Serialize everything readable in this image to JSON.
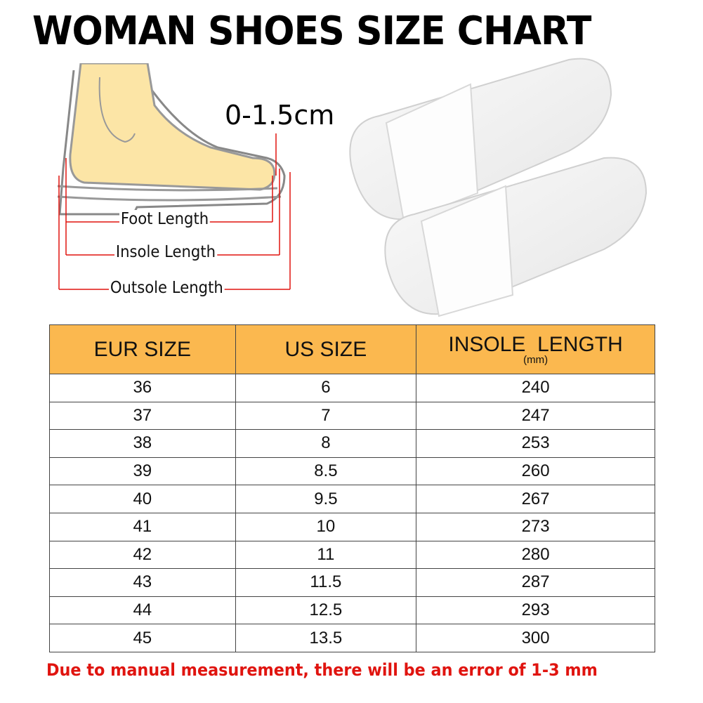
{
  "title": "WOMAN SHOES SIZE CHART",
  "diagram": {
    "gap_label": "0-1.5cm",
    "foot_length": "Foot Length",
    "insole_length": "Insole Length",
    "outsole_length": "Outsole Length",
    "arrow_color": "#e0140f",
    "foot_color": "#fce5a6"
  },
  "table": {
    "header_color": "#fbb84f",
    "headers": [
      "EUR SIZE",
      "US SIZE",
      "INSOLE  LENGTH"
    ],
    "header_unit": "(mm)",
    "rows": [
      [
        "36",
        "6",
        "240"
      ],
      [
        "37",
        "7",
        "247"
      ],
      [
        "38",
        "8",
        "253"
      ],
      [
        "39",
        "8.5",
        "260"
      ],
      [
        "40",
        "9.5",
        "267"
      ],
      [
        "41",
        "10",
        "273"
      ],
      [
        "42",
        "11",
        "280"
      ],
      [
        "43",
        "11.5",
        "287"
      ],
      [
        "44",
        "12.5",
        "293"
      ],
      [
        "45",
        "13.5",
        "300"
      ]
    ]
  },
  "note": "Due to manual measurement, there will be an error of 1-3  mm"
}
